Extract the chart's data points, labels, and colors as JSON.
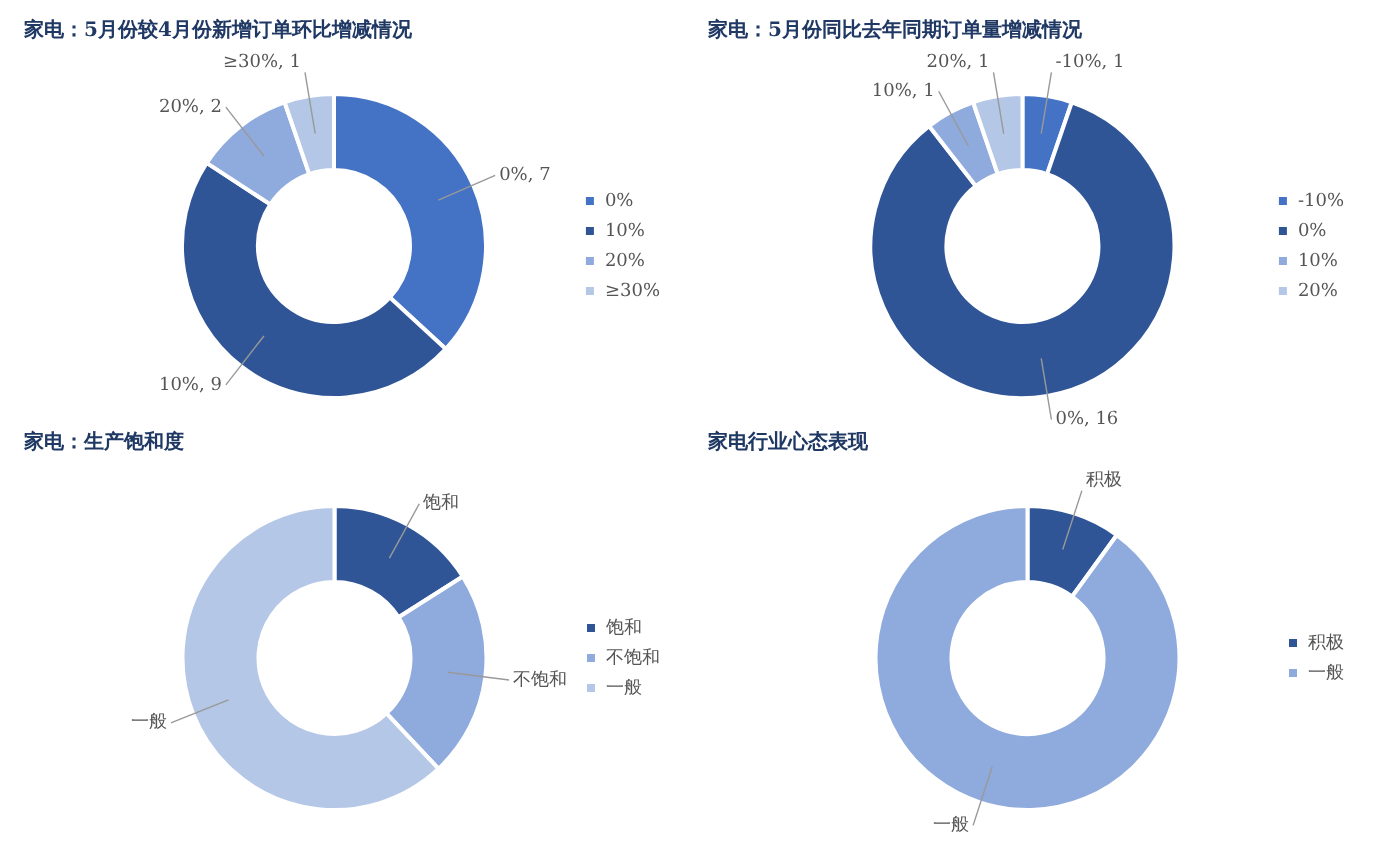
{
  "chart_data": [
    {
      "type": "donut",
      "title": "家电：5月份较4月份新增订单环比增减情况",
      "categories": [
        "0%",
        "10%",
        "20%",
        "≥30%"
      ],
      "values": [
        7,
        9,
        2,
        1
      ],
      "colors": [
        "#4472c4",
        "#2f5597",
        "#8faadc",
        "#b4c7e7"
      ],
      "value_labels": [
        "0%, 7",
        "10%, 9",
        "20%, 2",
        "≥30%, 1"
      ],
      "legend": "right"
    },
    {
      "type": "donut",
      "title": "家电：5月份同比去年同期订单量增减情况",
      "categories": [
        "-10%",
        "0%",
        "10%",
        "20%"
      ],
      "values": [
        1,
        16,
        1,
        1
      ],
      "colors": [
        "#4472c4",
        "#2f5597",
        "#8faadc",
        "#b4c7e7"
      ],
      "value_labels": [
        "-10%, 1",
        "0%, 16",
        "10%, 1",
        "20%, 1"
      ],
      "legend": "right"
    },
    {
      "type": "donut",
      "title": "家电：生产饱和度",
      "categories": [
        "饱和",
        "不饱和",
        "一般"
      ],
      "values": [
        16,
        22,
        62
      ],
      "colors": [
        "#2f5597",
        "#8faadc",
        "#b4c7e7"
      ],
      "value_labels": [
        "饱和",
        "不饱和",
        "一般"
      ],
      "legend": "right"
    },
    {
      "type": "donut",
      "title": "家电行业心态表现",
      "categories": [
        "积极",
        "一般"
      ],
      "values": [
        10,
        90
      ],
      "colors": [
        "#2f5597",
        "#8faadc"
      ],
      "value_labels": [
        "积极",
        "一般"
      ],
      "legend": "right"
    }
  ]
}
